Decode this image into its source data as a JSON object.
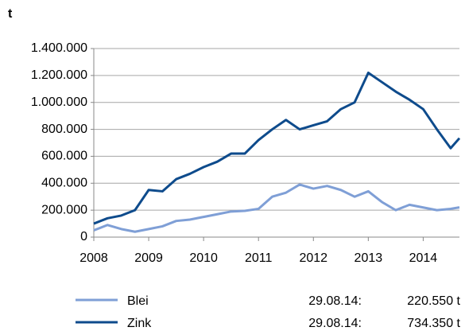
{
  "chart_data": {
    "type": "line",
    "y_label": "t",
    "x": [
      2008,
      2008.25,
      2008.5,
      2008.75,
      2009,
      2009.25,
      2009.5,
      2009.75,
      2010,
      2010.25,
      2010.5,
      2010.75,
      2011,
      2011.25,
      2011.5,
      2011.75,
      2012,
      2012.25,
      2012.5,
      2012.75,
      2013,
      2013.25,
      2013.5,
      2013.75,
      2014,
      2014.25,
      2014.5,
      2014.66
    ],
    "series": [
      {
        "name": "Blei",
        "color": "#7f9fd6",
        "values": [
          50000,
          90000,
          60000,
          40000,
          60000,
          80000,
          120000,
          130000,
          150000,
          170000,
          190000,
          195000,
          210000,
          300000,
          330000,
          390000,
          360000,
          380000,
          350000,
          300000,
          340000,
          260000,
          200000,
          240000,
          220000,
          200000,
          210000,
          220550
        ]
      },
      {
        "name": "Zink",
        "color": "#0e4b8c",
        "values": [
          100000,
          140000,
          160000,
          200000,
          350000,
          340000,
          430000,
          470000,
          520000,
          560000,
          620000,
          620000,
          720000,
          800000,
          870000,
          800000,
          830000,
          860000,
          950000,
          1000000,
          1220000,
          1150000,
          1080000,
          1020000,
          950000,
          800000,
          660000,
          734350
        ]
      }
    ],
    "xlim": [
      2008,
      2014.66
    ],
    "xticks": [
      2008,
      2009,
      2010,
      2011,
      2012,
      2013,
      2014
    ],
    "ylim": [
      0,
      1400000
    ],
    "yticks": [
      0,
      {
        "value": 200000,
        "label": "200.000"
      },
      {
        "value": 400000,
        "label": "400.000"
      },
      {
        "value": 600000,
        "label": "600.000"
      },
      {
        "value": 800000,
        "label": "800.000"
      },
      {
        "value": 1000000,
        "label": "1.000.000"
      },
      {
        "value": 1200000,
        "label": "1.200.000"
      },
      {
        "value": 1400000,
        "label": "1.400.000"
      }
    ],
    "grid": true,
    "annotations": [
      {
        "date": "29.08.14:",
        "value": "220.550 t"
      },
      {
        "date": "29.08.14:",
        "value": "734.350 t"
      }
    ]
  }
}
